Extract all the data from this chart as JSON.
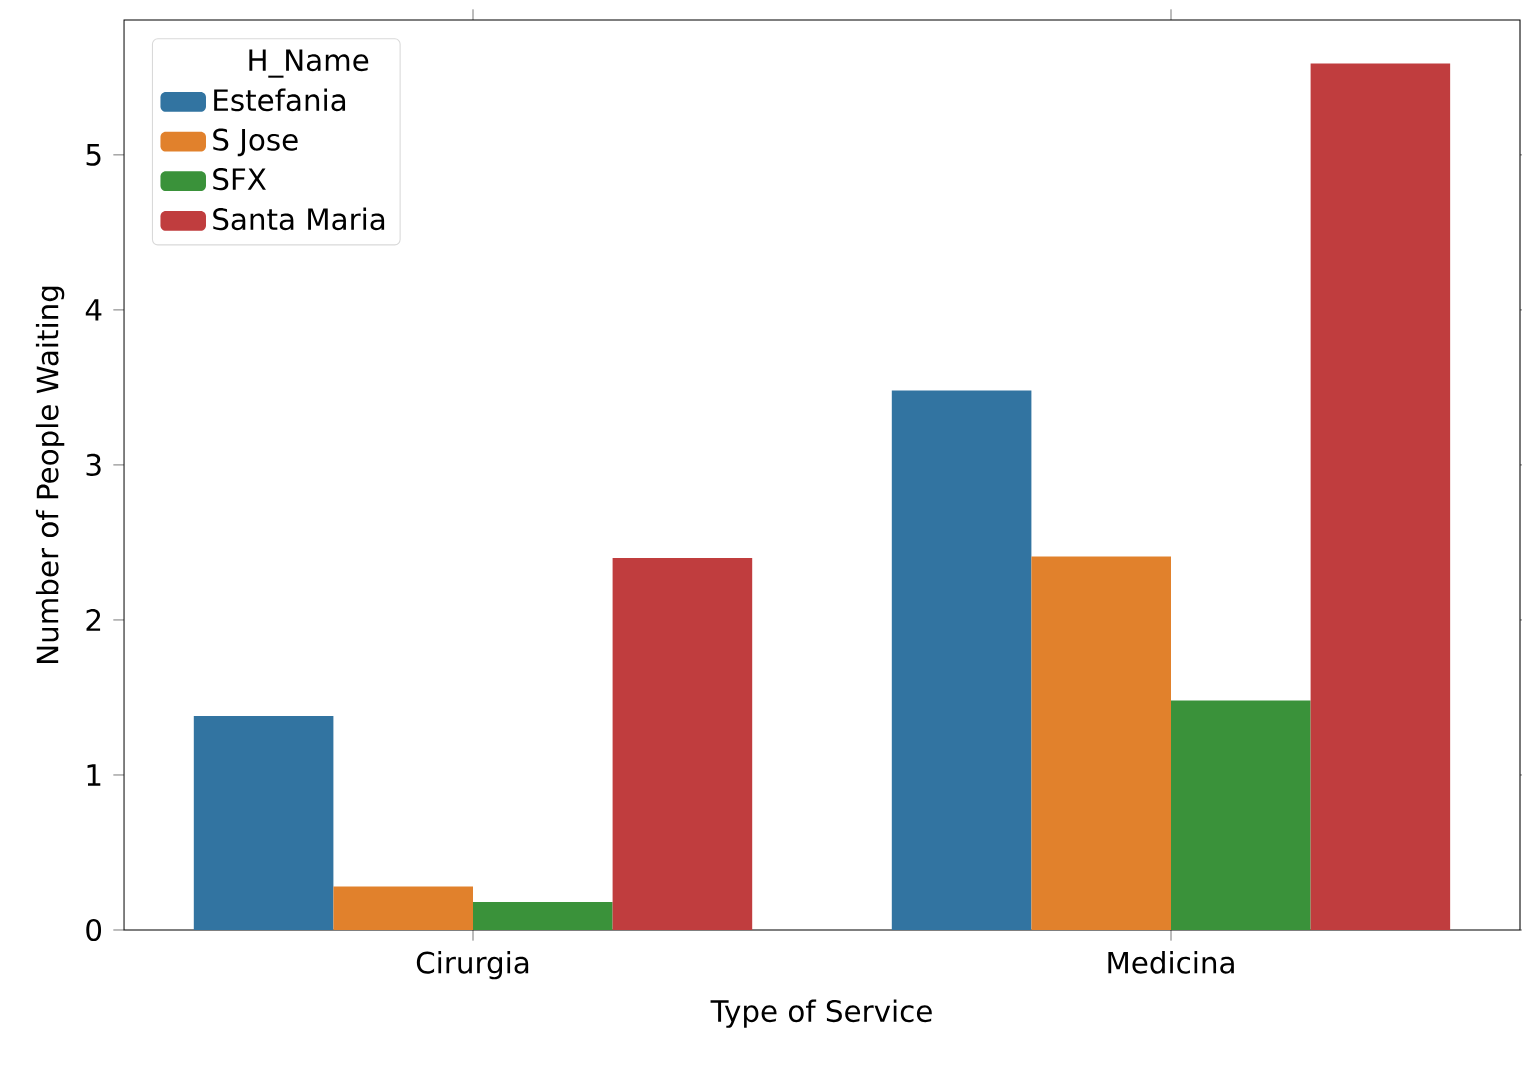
{
  "chart_data": {
    "type": "bar",
    "xlabel": "Type of Service",
    "ylabel": "Number of People Waiting",
    "legend_title": "H_Name",
    "categories": [
      "Cirurgia",
      "Medicina"
    ],
    "series": [
      {
        "name": "Estefania",
        "color": "#3274a1",
        "values": [
          1.38,
          3.48
        ]
      },
      {
        "name": "S Jose",
        "color": "#e1812c",
        "values": [
          0.28,
          2.41
        ]
      },
      {
        "name": "SFX",
        "color": "#3a923a",
        "values": [
          0.18,
          1.48
        ]
      },
      {
        "name": "Santa Maria",
        "color": "#c03d3e",
        "values": [
          2.4,
          5.59
        ]
      }
    ],
    "ylim": [
      0,
      5.87
    ],
    "yticks": [
      0,
      1,
      2,
      3,
      4,
      5
    ],
    "legend": "top left",
    "grid": false
  }
}
